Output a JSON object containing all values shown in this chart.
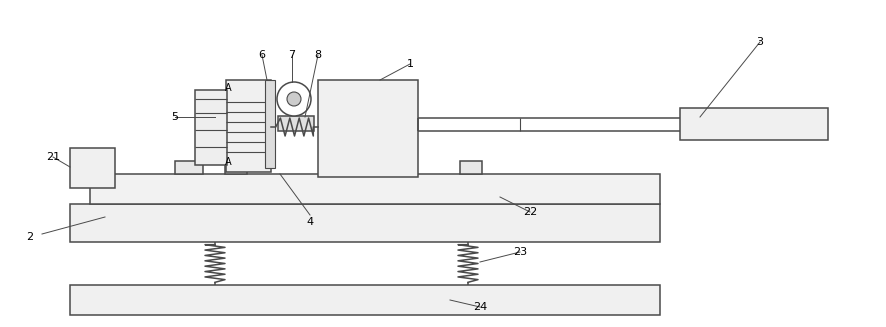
{
  "bg_color": "#ffffff",
  "line_color": "#4a4a4a",
  "line_width": 1.1,
  "fig_width": 8.86,
  "fig_height": 3.27,
  "dpi": 100
}
